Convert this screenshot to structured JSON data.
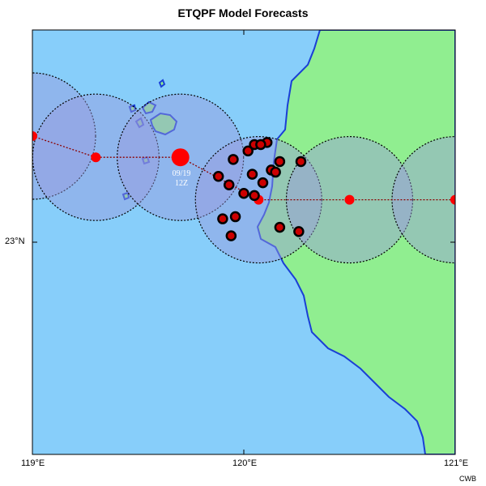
{
  "title": "ETQPF Model Forecasts",
  "credit": "CWB",
  "axes": {
    "x_ticks": [
      "119°E",
      "120°E",
      "121°E"
    ],
    "y_ticks": [
      "23°N"
    ],
    "lon_range": [
      119,
      121
    ],
    "lat_range": [
      22,
      24
    ]
  },
  "colors": {
    "ocean": "#87CEFA",
    "land": "#90EE90",
    "coast": "#1a3fd6",
    "track": "#8B0000",
    "center": "#ff0000",
    "circle_fill": "#9999dd",
    "member_fill": "#cc0000",
    "member_edge": "#000000"
  },
  "track_label": {
    "date": "09/19",
    "time": "12Z"
  },
  "track": [
    {
      "lon": 119.0,
      "lat": 23.5
    },
    {
      "lon": 119.3,
      "lat": 23.4
    },
    {
      "lon": 119.7,
      "lat": 23.4
    },
    {
      "lon": 120.07,
      "lat": 23.2
    },
    {
      "lon": 120.5,
      "lat": 23.2
    },
    {
      "lon": 121.0,
      "lat": 23.2
    }
  ],
  "current_index": 2,
  "members": [
    {
      "lon": 119.95,
      "lat": 23.39
    },
    {
      "lon": 120.02,
      "lat": 23.43
    },
    {
      "lon": 120.05,
      "lat": 23.46
    },
    {
      "lon": 120.11,
      "lat": 23.47
    },
    {
      "lon": 120.08,
      "lat": 23.46
    },
    {
      "lon": 120.27,
      "lat": 23.38
    },
    {
      "lon": 120.17,
      "lat": 23.38
    },
    {
      "lon": 120.13,
      "lat": 23.34
    },
    {
      "lon": 120.15,
      "lat": 23.33
    },
    {
      "lon": 120.04,
      "lat": 23.32
    },
    {
      "lon": 119.88,
      "lat": 23.31
    },
    {
      "lon": 119.93,
      "lat": 23.27
    },
    {
      "lon": 120.09,
      "lat": 23.28
    },
    {
      "lon": 120.0,
      "lat": 23.23
    },
    {
      "lon": 120.05,
      "lat": 23.22
    },
    {
      "lon": 119.9,
      "lat": 23.11
    },
    {
      "lon": 119.96,
      "lat": 23.12
    },
    {
      "lon": 119.94,
      "lat": 23.03
    },
    {
      "lon": 120.17,
      "lat": 23.07
    },
    {
      "lon": 120.26,
      "lat": 23.05
    }
  ]
}
